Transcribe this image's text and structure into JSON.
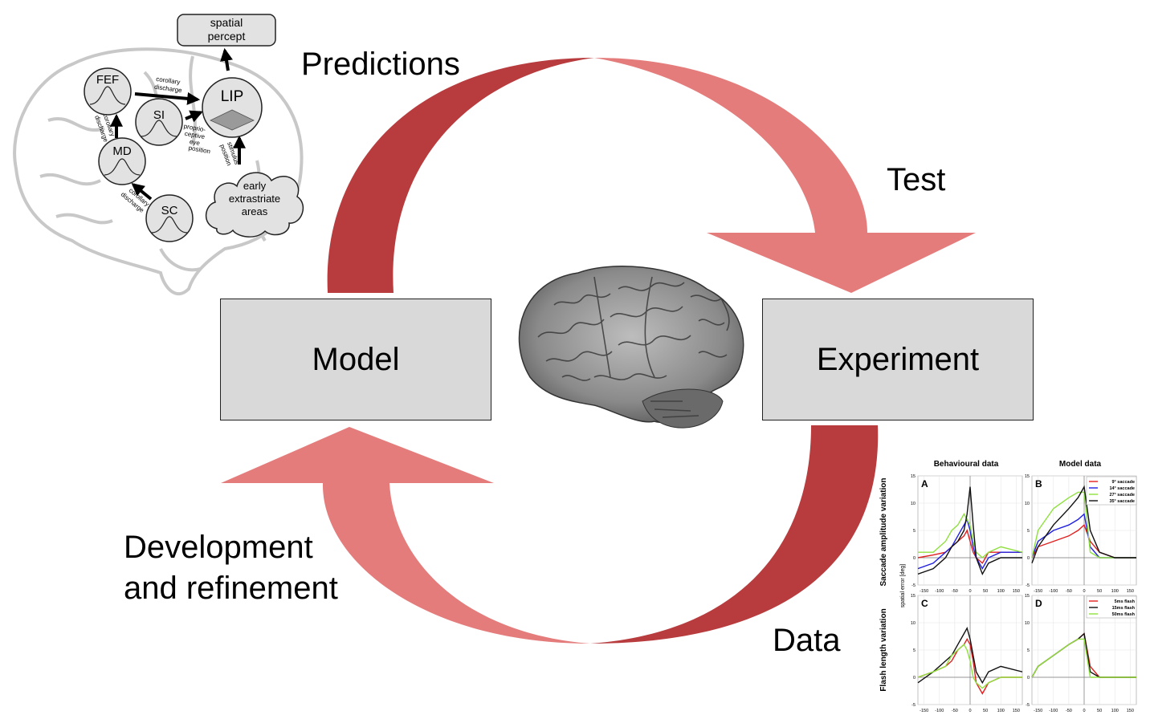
{
  "labels": {
    "predictions": "Predictions",
    "test": "Test",
    "development": "Development",
    "refinement": "and refinement",
    "data": "Data",
    "model": "Model",
    "experiment": "Experiment"
  },
  "network": {
    "spatial_percept_line1": "spatial",
    "spatial_percept_line2": "percept",
    "fef": "FEF",
    "lip": "LIP",
    "si": "SI",
    "md": "MD",
    "sc": "SC",
    "early_line1": "early",
    "early_line2": "extrastriate",
    "early_line3": "areas",
    "corollary_discharge": "corollary discharge",
    "corollary": "corollary",
    "discharge": "discharge",
    "proprio1": "proprio-",
    "proprio2": "ceptive",
    "proprio3": "eye",
    "proprio4": "position",
    "stimulus": "stimulus",
    "position": "position"
  },
  "colors": {
    "dark_red": "#b83c3e",
    "light_red": "#e57c7c",
    "box_fill": "#d9d9d9",
    "brain_outline": "#c8c8c8",
    "node_fill": "#e2e2e2"
  },
  "figure": {
    "col_titles": [
      "Behavioural data",
      "Model data"
    ],
    "row_titles": [
      "Saccade amplitude variation",
      "Flash length variation"
    ],
    "ylabel": "spatial error [deg]",
    "panel_letters": [
      "A",
      "B",
      "C",
      "D"
    ],
    "x_ticks": [
      "-150",
      "-100",
      "-50",
      "0",
      "50",
      "100",
      "150"
    ],
    "y_ticks": [
      "15",
      "10",
      "5",
      "0",
      "-5"
    ],
    "legend_top": [
      "9° saccade",
      "14° saccade",
      "27° saccade",
      "35° saccade"
    ],
    "legend_bottom": [
      "5ms flash",
      "15ms flash",
      "50ms flash"
    ]
  },
  "chart_data": [
    {
      "type": "line",
      "title": "Behavioural data",
      "ylabel": "Saccade amplitude variation",
      "xlim": [
        -170,
        170
      ],
      "ylim": [
        -5,
        15
      ],
      "series": [
        {
          "name": "9° saccade",
          "x": [
            -170,
            -120,
            -80,
            -60,
            -40,
            -20,
            -10,
            0,
            10,
            20,
            40,
            60,
            100,
            170
          ],
          "y": [
            0,
            0.5,
            1,
            2,
            3,
            4,
            5,
            3,
            1,
            0,
            -1,
            1,
            1,
            1
          ]
        },
        {
          "name": "14° saccade",
          "x": [
            -170,
            -120,
            -80,
            -60,
            -40,
            -20,
            -10,
            0,
            10,
            20,
            40,
            60,
            100,
            170
          ],
          "y": [
            -2,
            -1,
            1,
            2,
            4,
            6,
            7,
            5,
            2,
            0,
            -2,
            0,
            1,
            1
          ]
        },
        {
          "name": "27° saccade",
          "x": [
            -170,
            -120,
            -80,
            -60,
            -40,
            -20,
            -10,
            0,
            10,
            20,
            40,
            60,
            100,
            170
          ],
          "y": [
            1,
            1,
            3,
            5,
            6,
            8,
            7,
            6,
            3,
            1,
            0,
            1,
            2,
            1
          ]
        },
        {
          "name": "35° saccade",
          "x": [
            -170,
            -120,
            -80,
            -60,
            -40,
            -20,
            -10,
            0,
            10,
            20,
            40,
            60,
            100,
            170
          ],
          "y": [
            -3,
            -2,
            0,
            2,
            3,
            5,
            8,
            13,
            6,
            0,
            -3,
            -1,
            0,
            0
          ]
        }
      ]
    },
    {
      "type": "line",
      "title": "Model data",
      "xlim": [
        -170,
        170
      ],
      "ylim": [
        -5,
        15
      ],
      "series": [
        {
          "name": "9° saccade",
          "x": [
            -170,
            -150,
            -100,
            -50,
            -20,
            0,
            20,
            50,
            100,
            170
          ],
          "y": [
            0,
            2,
            3,
            4,
            5,
            6,
            3,
            1,
            0,
            0
          ]
        },
        {
          "name": "14° saccade",
          "x": [
            -170,
            -150,
            -100,
            -50,
            -20,
            0,
            20,
            50,
            100,
            170
          ],
          "y": [
            0,
            3,
            5,
            6,
            7,
            8,
            2,
            0,
            0,
            0
          ]
        },
        {
          "name": "27° saccade",
          "x": [
            -170,
            -150,
            -100,
            -50,
            -20,
            0,
            20,
            50,
            100,
            170
          ],
          "y": [
            0,
            5,
            9,
            11,
            12,
            12,
            1,
            0,
            0,
            0
          ]
        },
        {
          "name": "35° saccade",
          "x": [
            -170,
            -150,
            -100,
            -50,
            -20,
            0,
            20,
            50,
            100,
            170
          ],
          "y": [
            -1,
            2,
            6,
            9,
            11,
            13,
            5,
            1,
            0,
            0
          ]
        }
      ]
    },
    {
      "type": "line",
      "ylabel": "Flash length variation",
      "xlim": [
        -170,
        170
      ],
      "ylim": [
        -5,
        15
      ],
      "series": [
        {
          "name": "5ms flash",
          "x": [
            -170,
            -120,
            -80,
            -60,
            -40,
            -20,
            -10,
            0,
            10,
            20,
            40,
            60,
            100,
            170
          ],
          "y": [
            0,
            1,
            2,
            3,
            5,
            6,
            7,
            6,
            3,
            -1,
            -3,
            -1,
            0,
            0
          ]
        },
        {
          "name": "15ms flash",
          "x": [
            -170,
            -120,
            -80,
            -60,
            -40,
            -20,
            -10,
            0,
            10,
            20,
            40,
            60,
            100,
            170
          ],
          "y": [
            -1,
            1,
            3,
            4,
            6,
            8,
            9,
            7,
            4,
            1,
            -1,
            1,
            2,
            1
          ]
        },
        {
          "name": "50ms flash",
          "x": [
            -170,
            -120,
            -80,
            -60,
            -40,
            -20,
            -10,
            0,
            10,
            20,
            40,
            60,
            100,
            170
          ],
          "y": [
            0,
            1,
            2,
            4,
            5,
            6,
            5,
            3,
            0,
            -1,
            -2,
            -1,
            0,
            0
          ]
        }
      ]
    },
    {
      "type": "line",
      "xlim": [
        -170,
        170
      ],
      "ylim": [
        -5,
        15
      ],
      "series": [
        {
          "name": "5ms flash",
          "x": [
            -170,
            -150,
            -100,
            -50,
            -20,
            0,
            20,
            50,
            100,
            170
          ],
          "y": [
            0,
            2,
            4,
            6,
            7,
            8,
            2,
            0,
            0,
            0
          ]
        },
        {
          "name": "15ms flash",
          "x": [
            -170,
            -150,
            -100,
            -50,
            -20,
            0,
            20,
            50,
            100,
            170
          ],
          "y": [
            0,
            2,
            4,
            6,
            7,
            8,
            1,
            0,
            0,
            0
          ]
        },
        {
          "name": "50ms flash",
          "x": [
            -170,
            -150,
            -100,
            -50,
            -20,
            0,
            20,
            50,
            100,
            170
          ],
          "y": [
            0,
            2,
            4,
            6,
            7,
            7,
            0,
            0,
            0,
            0
          ]
        }
      ]
    }
  ]
}
